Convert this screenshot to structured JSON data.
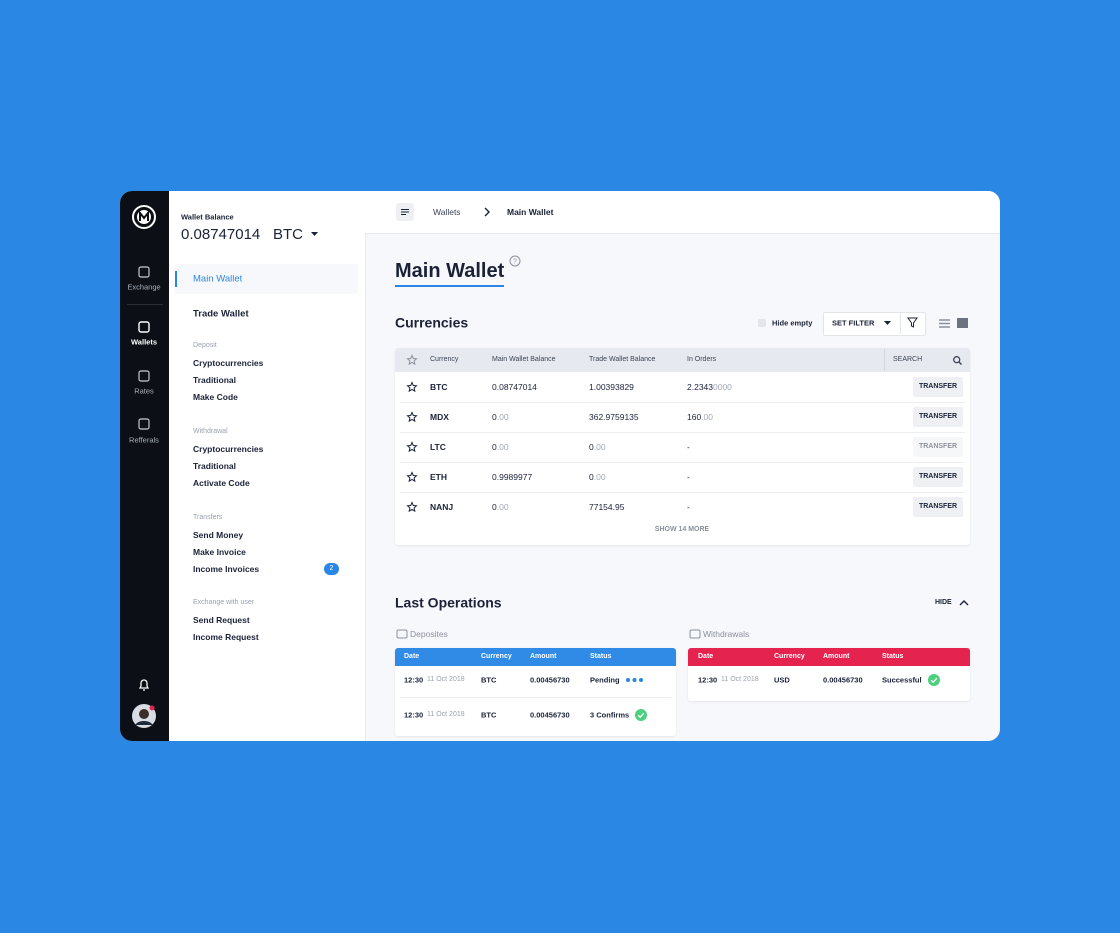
{
  "nav": {
    "items": [
      {
        "label": "Exchange"
      },
      {
        "label": "Wallets"
      },
      {
        "label": "Rates"
      },
      {
        "label": "Refferals"
      }
    ]
  },
  "wallet": {
    "balance_label": "Wallet Balance",
    "balance": "0.08747014",
    "currency": "BTC"
  },
  "menu": {
    "items": [
      "Main Wallet",
      "Trade Wallet"
    ],
    "sections": [
      {
        "title": "Deposit",
        "links": [
          {
            "label": "Cryptocurrencies"
          },
          {
            "label": "Traditional"
          },
          {
            "label": "Make Code"
          }
        ]
      },
      {
        "title": "Withdrawal",
        "links": [
          {
            "label": "Cryptocurrencies"
          },
          {
            "label": "Traditional"
          },
          {
            "label": "Activate Code"
          }
        ]
      },
      {
        "title": "Transfers",
        "links": [
          {
            "label": "Send Money"
          },
          {
            "label": "Make Invoice"
          },
          {
            "label": "Income Invoices",
            "badge": "2"
          }
        ]
      },
      {
        "title": "Exchange with user",
        "links": [
          {
            "label": "Send Request"
          },
          {
            "label": "Income Request"
          }
        ]
      }
    ]
  },
  "breadcrumb": [
    "Wallets",
    "Main Wallet"
  ],
  "page_title": "Main Wallet",
  "currencies": {
    "title": "Currencies",
    "hide_empty": "Hide empty",
    "filter": "SET FILTER",
    "columns": [
      "Currency",
      "Main Wallet Balance",
      "Trade Wallet Balance",
      "In Orders"
    ],
    "search": "SEARCH",
    "rows": [
      {
        "currency": "BTC",
        "main_balance": {
          "value": "0.08747014"
        },
        "trade_balance": {
          "value": "1.00393829"
        },
        "in_orders": {
          "value": "2.2343",
          "faded": "0000"
        },
        "action": "TRANSFER"
      },
      {
        "currency": "MDX",
        "main_balance": {
          "value": "0",
          "faded": ".00"
        },
        "trade_balance": {
          "value": "362.9759135"
        },
        "in_orders": {
          "value": "160",
          "faded": ".00"
        },
        "action": "TRANSFER"
      },
      {
        "currency": "LTC",
        "main_balance": {
          "value": "0",
          "faded": ".00"
        },
        "trade_balance": {
          "value": "0",
          "faded": ".00"
        },
        "in_orders": {
          "value": "-"
        },
        "action": "TRANSFER",
        "disabled": true
      },
      {
        "currency": "ETH",
        "main_balance": {
          "value": "0.9989977"
        },
        "trade_balance": {
          "value": "0",
          "faded": ".00"
        },
        "in_orders": {
          "value": "-"
        },
        "action": "TRANSFER"
      },
      {
        "currency": "NANJ",
        "main_balance": {
          "value": "0",
          "faded": ".00"
        },
        "trade_balance": {
          "value": "77154.95"
        },
        "in_orders": {
          "value": "-"
        },
        "action": "TRANSFER"
      }
    ],
    "more": "SHOW 14 MORE"
  },
  "operations": {
    "title": "Last Operations",
    "hide": "HIDE",
    "deposits": {
      "title": "Deposites",
      "columns": [
        "Date",
        "Currency",
        "Amount",
        "Status"
      ],
      "rows": [
        {
          "time": "12:30",
          "date": "11 Oct 2018",
          "currency": "BTC",
          "amount": "0.00456730",
          "status": "Pending"
        },
        {
          "time": "12:30",
          "date": "11 Oct 2018",
          "currency": "BTC",
          "amount": "0.00456730",
          "status": "3 Confirms"
        }
      ]
    },
    "withdrawals": {
      "title": "Withdrawals",
      "columns": [
        "Date",
        "Currency",
        "Amount",
        "Status"
      ],
      "rows": [
        {
          "time": "12:30",
          "date": "11 Oct 2018",
          "currency": "USD",
          "amount": "0.00456730",
          "status": "Successful"
        }
      ]
    }
  }
}
